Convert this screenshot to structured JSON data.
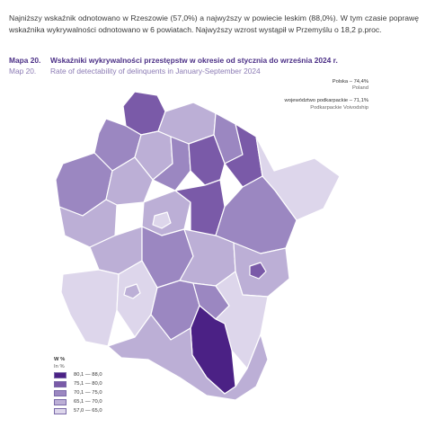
{
  "intro_text": "Najniższy wskaźnik odnotowano w Rzeszowie (57,0%) a najwyższy w powiecie leskim (88,0%). W tym czasie poprawę wskaźnika wykrywalności odnotowano w 6 powiatach. Najwyższy wzrost wystąpił w Przemyślu o 18,2 p.proc.",
  "map_title": {
    "number_pl": "Mapa 20.",
    "text_pl": "Wskaźniki wykrywalności przestępstw w okresie od stycznia do września 2024 r.",
    "number_en": "Map 20.",
    "text_en": "Rate of detectability of delinquents in January-September 2024"
  },
  "stats": {
    "poland_pl": "Polska – 74,4%",
    "poland_en": "Poland",
    "region_pl": "województwo podkarpackie – 71,1%",
    "region_en": "Podkarpackie Voivodship"
  },
  "legend": {
    "title": "W %",
    "subtitle": "In %",
    "classes": [
      {
        "label": "80,1 — 88,0",
        "color": "#4b2185"
      },
      {
        "label": "75,1 — 80,0",
        "color": "#7a5aa8"
      },
      {
        "label": "70,1 — 75,0",
        "color": "#9b87c1"
      },
      {
        "label": "65,1 — 70,0",
        "color": "#bcafd6"
      },
      {
        "label": "57,0 — 65,0",
        "color": "#ddd6eb"
      }
    ]
  },
  "colors": {
    "class_1": "#4b2185",
    "class_2": "#7a5aa8",
    "class_3": "#9b87c1",
    "class_4": "#bcafd6",
    "class_5": "#ddd6eb",
    "border": "#ffffff",
    "outline": "#7a6aa8"
  }
}
